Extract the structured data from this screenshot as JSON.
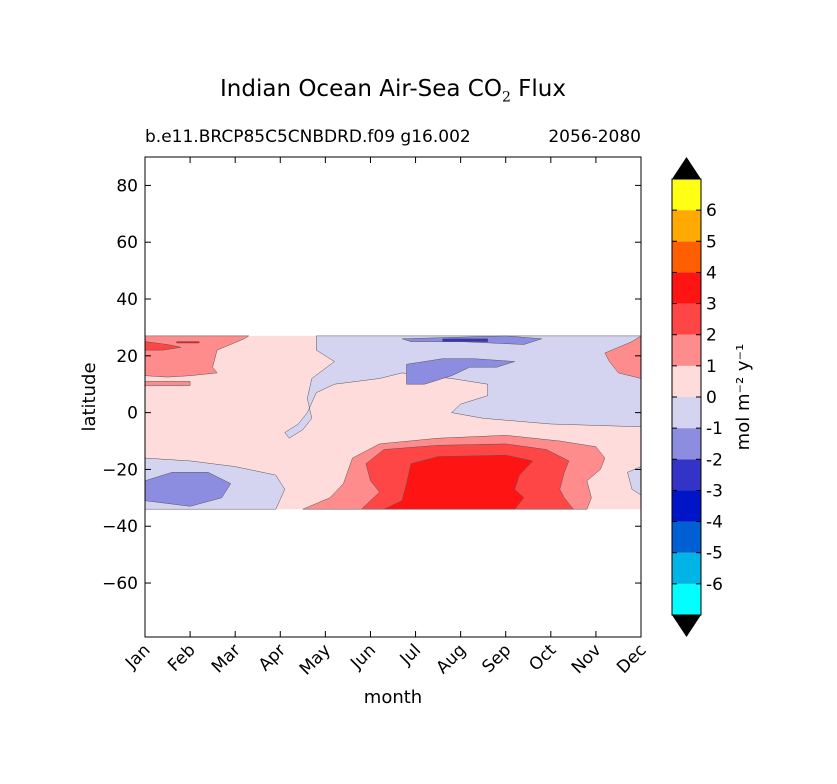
{
  "header": {
    "title_main": "Indian Ocean Air-Sea CO",
    "title_sub": "2",
    "title_end": " Flux",
    "subtitle_left": "b.e11.BRCP85C5CNBDRD.f09 g16.002",
    "subtitle_right": "2056-2080"
  },
  "colors": {
    "levels": [
      "#00ffff",
      "#00b4e6",
      "#005fd2",
      "#0014c8",
      "#3333c8",
      "#8c8ce1",
      "#d4d4f0",
      "#ffdcdc",
      "#ff8c8c",
      "#ff4646",
      "#ff1414",
      "#ff5f00",
      "#ffaa00",
      "#ffff14"
    ],
    "extend": "#000000"
  },
  "chart_data": {
    "type": "contour",
    "title": "Indian Ocean Air-Sea CO2 Flux",
    "xlabel": "month",
    "ylabel": "latitude",
    "x": [
      "Jan",
      "Feb",
      "Mar",
      "Apr",
      "May",
      "Jun",
      "Jul",
      "Aug",
      "Sep",
      "Oct",
      "Nov",
      "Dec"
    ],
    "y_ticks": [
      80,
      60,
      40,
      20,
      0,
      -20,
      -40,
      -60
    ],
    "y_tick_labels": [
      "80",
      "60",
      "40",
      "20",
      "0",
      "−20",
      "−40",
      "−60"
    ],
    "xlim": [
      1,
      12
    ],
    "ylim": [
      -79,
      90
    ],
    "data_lat_range": [
      -34,
      27
    ],
    "colorbar": {
      "label": "mol m⁻² y⁻¹",
      "levels": [
        -7,
        -6,
        -5,
        -4,
        -3,
        -2,
        -1,
        0,
        1,
        2,
        3,
        4,
        5,
        6,
        7
      ],
      "tick_labels": [
        "-6",
        "-5",
        "-4",
        "-3",
        "-2",
        "-1",
        "0",
        "1",
        "2",
        "3",
        "4",
        "5",
        "6"
      ],
      "extend": "both"
    },
    "regions": [
      {
        "level": "0 to 1",
        "value": 0.5,
        "points": [
          [
            1,
            27
          ],
          [
            12,
            27
          ],
          [
            12,
            -34
          ],
          [
            1,
            -34
          ]
        ]
      },
      {
        "level": "-1 to 0",
        "value": -0.5,
        "points": [
          [
            4.8,
            27
          ],
          [
            12,
            27
          ],
          [
            12,
            -5
          ],
          [
            10,
            -4
          ],
          [
            8.5,
            -2
          ],
          [
            7.8,
            0
          ],
          [
            8,
            3
          ],
          [
            8.6,
            6
          ],
          [
            8.6,
            10
          ],
          [
            7.8,
            12
          ],
          [
            6.7,
            14
          ],
          [
            6.2,
            12
          ],
          [
            5.2,
            10
          ],
          [
            4.8,
            7
          ],
          [
            4.6,
            0
          ],
          [
            4.4,
            -4
          ],
          [
            4.1,
            -7
          ],
          [
            4.2,
            -9
          ],
          [
            4.5,
            -6
          ],
          [
            4.7,
            -2
          ],
          [
            4.6,
            5
          ],
          [
            4.7,
            12
          ],
          [
            5.2,
            18
          ],
          [
            4.8,
            22
          ]
        ]
      },
      {
        "level": "-1 to 0",
        "value": -0.5,
        "points": [
          [
            1,
            -16
          ],
          [
            2,
            -17
          ],
          [
            3,
            -19
          ],
          [
            3.9,
            -22
          ],
          [
            4.1,
            -27
          ],
          [
            3.9,
            -34
          ],
          [
            1,
            -34
          ]
        ]
      },
      {
        "level": "-1 to 0",
        "value": -0.5,
        "points": [
          [
            11.7,
            -21
          ],
          [
            12,
            -19
          ],
          [
            12,
            -29
          ],
          [
            11.8,
            -27
          ]
        ]
      },
      {
        "level": "-2 to -1",
        "value": -1.5,
        "points": [
          [
            1,
            -24
          ],
          [
            1.6,
            -21
          ],
          [
            2.4,
            -21
          ],
          [
            2.9,
            -25
          ],
          [
            2.7,
            -30
          ],
          [
            2,
            -33
          ],
          [
            1,
            -31
          ]
        ]
      },
      {
        "level": "-2 to -1",
        "value": -1.5,
        "points": [
          [
            6.8,
            17
          ],
          [
            7.6,
            19
          ],
          [
            8.3,
            19
          ],
          [
            9.2,
            18
          ],
          [
            8.8,
            16
          ],
          [
            8.2,
            16
          ],
          [
            7.8,
            13
          ],
          [
            7.2,
            10
          ],
          [
            6.8,
            10
          ],
          [
            6.8,
            14
          ]
        ]
      },
      {
        "level": "-2 to -1",
        "value": -1.5,
        "points": [
          [
            6.7,
            26
          ],
          [
            9,
            27
          ],
          [
            9.8,
            26
          ],
          [
            9.4,
            24
          ],
          [
            8,
            25
          ],
          [
            6.9,
            25
          ]
        ]
      },
      {
        "level": "-3 to -2",
        "value": -2.5,
        "points": [
          [
            7.6,
            26
          ],
          [
            8.6,
            26
          ],
          [
            8.6,
            25
          ],
          [
            7.6,
            25
          ]
        ]
      },
      {
        "level": "1 to 2",
        "value": 1.5,
        "points": [
          [
            1,
            27
          ],
          [
            3.3,
            27
          ],
          [
            3.2,
            26
          ],
          [
            2.6,
            22
          ],
          [
            2.5,
            16
          ],
          [
            2.6,
            14
          ],
          [
            2,
            13
          ],
          [
            1.5,
            12.5
          ],
          [
            1,
            13
          ]
        ]
      },
      {
        "level": "1 to 2",
        "value": 1.5,
        "points": [
          [
            1,
            11
          ],
          [
            2,
            11
          ],
          [
            2,
            9.5
          ],
          [
            1,
            9.5
          ]
        ]
      },
      {
        "level": "1 to 2",
        "value": 1.5,
        "points": [
          [
            11.2,
            21
          ],
          [
            11.8,
            25
          ],
          [
            12,
            27
          ],
          [
            12,
            12
          ],
          [
            11.5,
            14
          ],
          [
            11.3,
            18
          ]
        ]
      },
      {
        "level": "1 to 2",
        "value": 1.5,
        "points": [
          [
            4.5,
            -34
          ],
          [
            5.1,
            -30
          ],
          [
            5.4,
            -25
          ],
          [
            5.6,
            -16
          ],
          [
            6.2,
            -11
          ],
          [
            7.5,
            -9
          ],
          [
            9,
            -8
          ],
          [
            10.2,
            -10
          ],
          [
            11,
            -12
          ],
          [
            11.2,
            -16
          ],
          [
            11.1,
            -20
          ],
          [
            10.8,
            -24
          ],
          [
            10.9,
            -30
          ],
          [
            10.8,
            -34
          ]
        ]
      },
      {
        "level": "2 to 3",
        "value": 2.5,
        "points": [
          [
            5.8,
            -34
          ],
          [
            6.2,
            -28
          ],
          [
            6,
            -24
          ],
          [
            5.9,
            -18
          ],
          [
            6.3,
            -13
          ],
          [
            7.5,
            -11.5
          ],
          [
            9,
            -11
          ],
          [
            9.9,
            -13
          ],
          [
            10.4,
            -17
          ],
          [
            10.3,
            -21
          ],
          [
            10.2,
            -27
          ],
          [
            10.3,
            -30
          ],
          [
            10.5,
            -34
          ]
        ]
      },
      {
        "level": "2 to 3",
        "value": 2.5,
        "points": [
          [
            1,
            25
          ],
          [
            1.5,
            24
          ],
          [
            1.8,
            23
          ],
          [
            1.4,
            22
          ],
          [
            1,
            22
          ]
        ]
      },
      {
        "level": "3 to 4",
        "value": 3.5,
        "points": [
          [
            6.3,
            -34
          ],
          [
            6.7,
            -31
          ],
          [
            6.8,
            -25
          ],
          [
            6.9,
            -18
          ],
          [
            7.5,
            -15.5
          ],
          [
            9,
            -15
          ],
          [
            9.6,
            -17
          ],
          [
            9.3,
            -22
          ],
          [
            9.2,
            -27
          ],
          [
            9.4,
            -30
          ],
          [
            9.2,
            -34
          ]
        ]
      },
      {
        "level": "3 to 4",
        "value": 3.5,
        "points": [
          [
            1.7,
            25
          ],
          [
            2.2,
            25
          ],
          [
            2.2,
            24.5
          ],
          [
            1.7,
            24.5
          ]
        ]
      }
    ]
  }
}
